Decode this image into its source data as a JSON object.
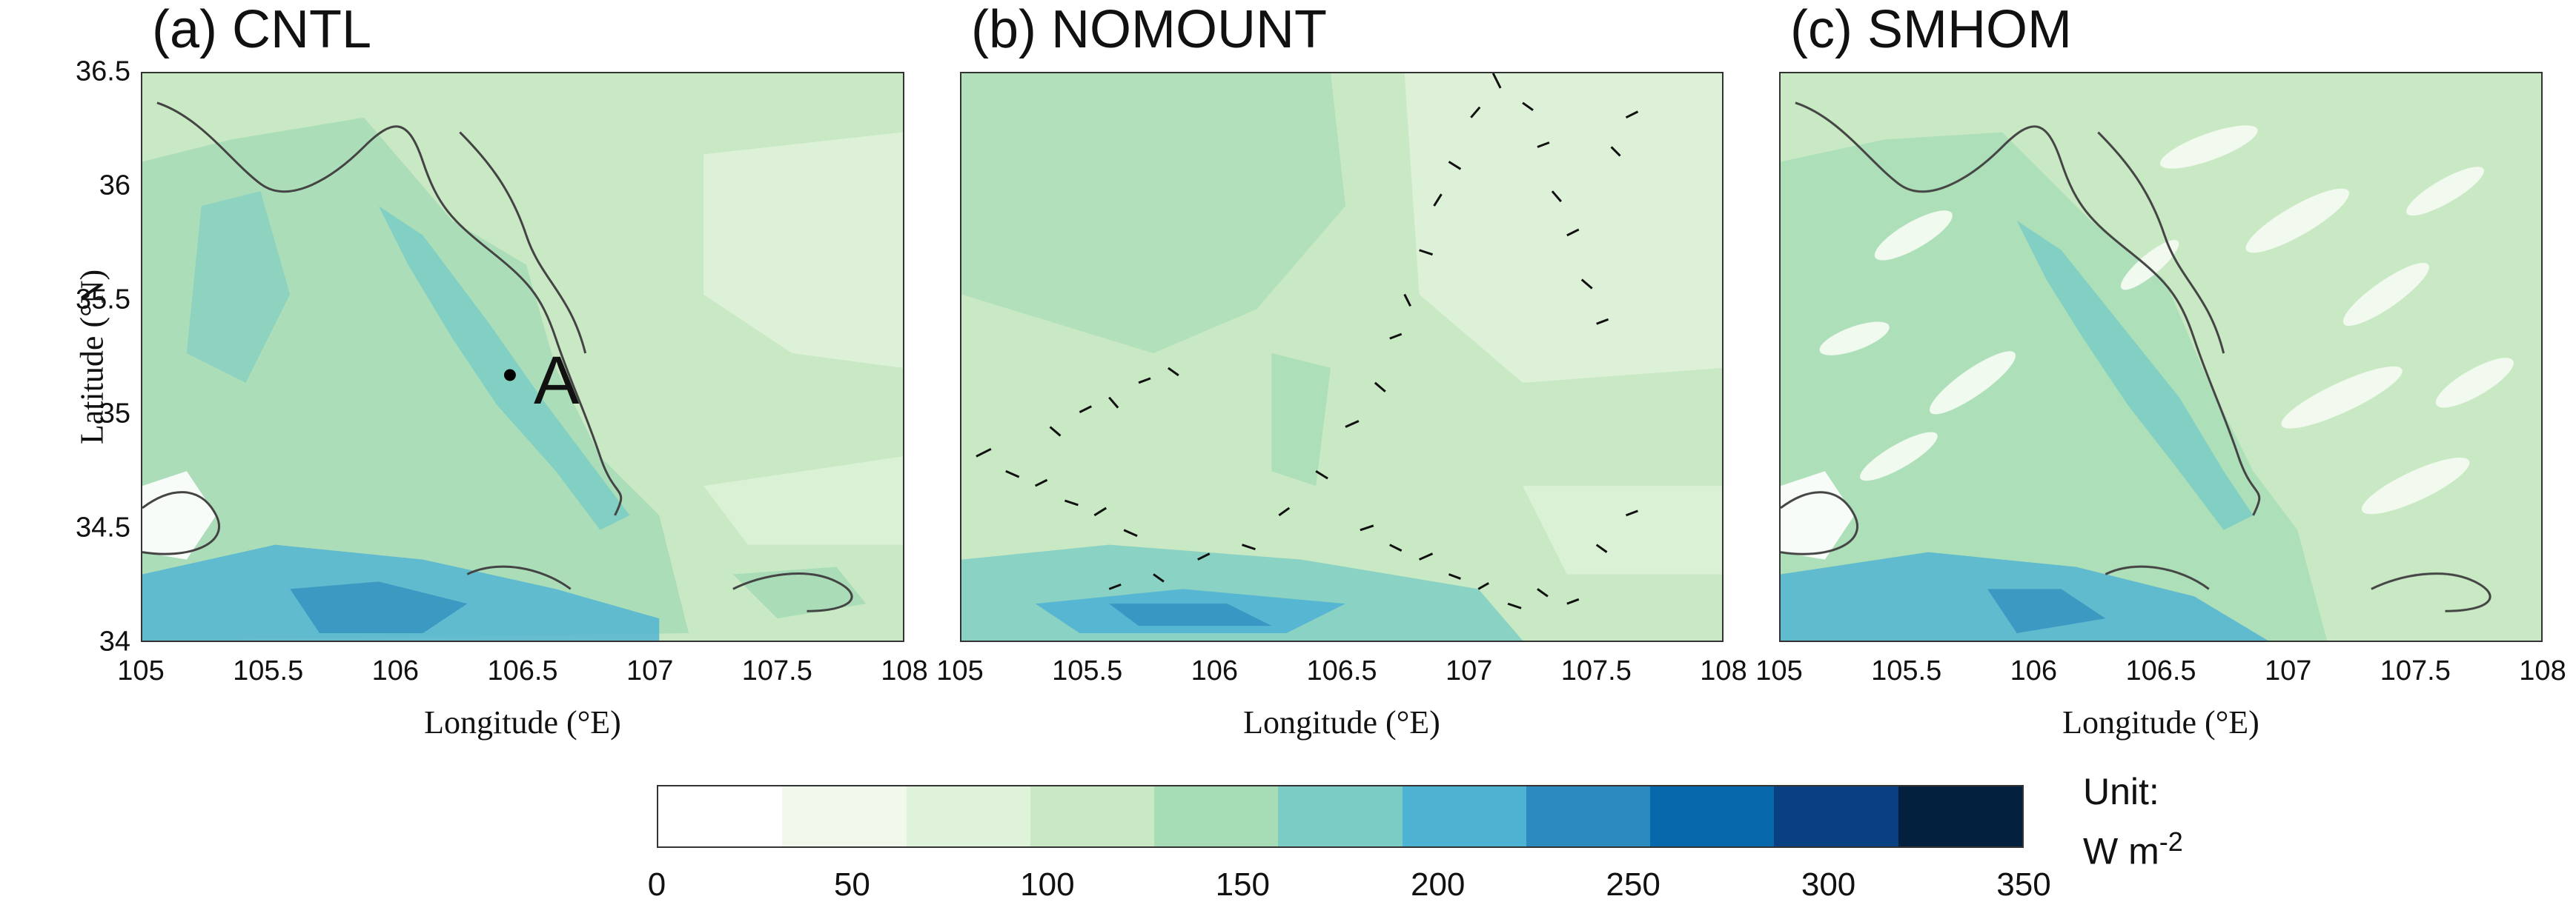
{
  "panels": [
    {
      "title": "(a) CNTL"
    },
    {
      "title": "(b) NOMOUNT"
    },
    {
      "title": "(c) SMHOM"
    }
  ],
  "axes": {
    "x_label": "Longitude (°E)",
    "y_label": "Latitude (°N)",
    "x_ticks": [
      "105",
      "105.5",
      "106",
      "106.5",
      "107",
      "107.5",
      "108"
    ],
    "y_ticks": [
      "36.5",
      "36",
      "35.5",
      "35",
      "34.5",
      "34"
    ],
    "x_range": [
      105,
      108
    ],
    "y_range": [
      34,
      36.5
    ]
  },
  "point": {
    "label": "A",
    "lon": 106.45,
    "lat": 35.17
  },
  "colorbar": {
    "ticks": [
      "0",
      "50",
      "100",
      "150",
      "200",
      "250",
      "300",
      "350"
    ],
    "range": [
      0,
      350
    ],
    "colors": [
      "#ffffff",
      "#f0f9ec",
      "#dff2da",
      "#c8e9c3",
      "#a6dcb6",
      "#7accc4",
      "#4eb2d3",
      "#2c8abe",
      "#0868ac",
      "#084081",
      "#03213f"
    ],
    "unit_line1": "Unit:",
    "unit_line2": "W m",
    "unit_exp": "-2"
  }
}
